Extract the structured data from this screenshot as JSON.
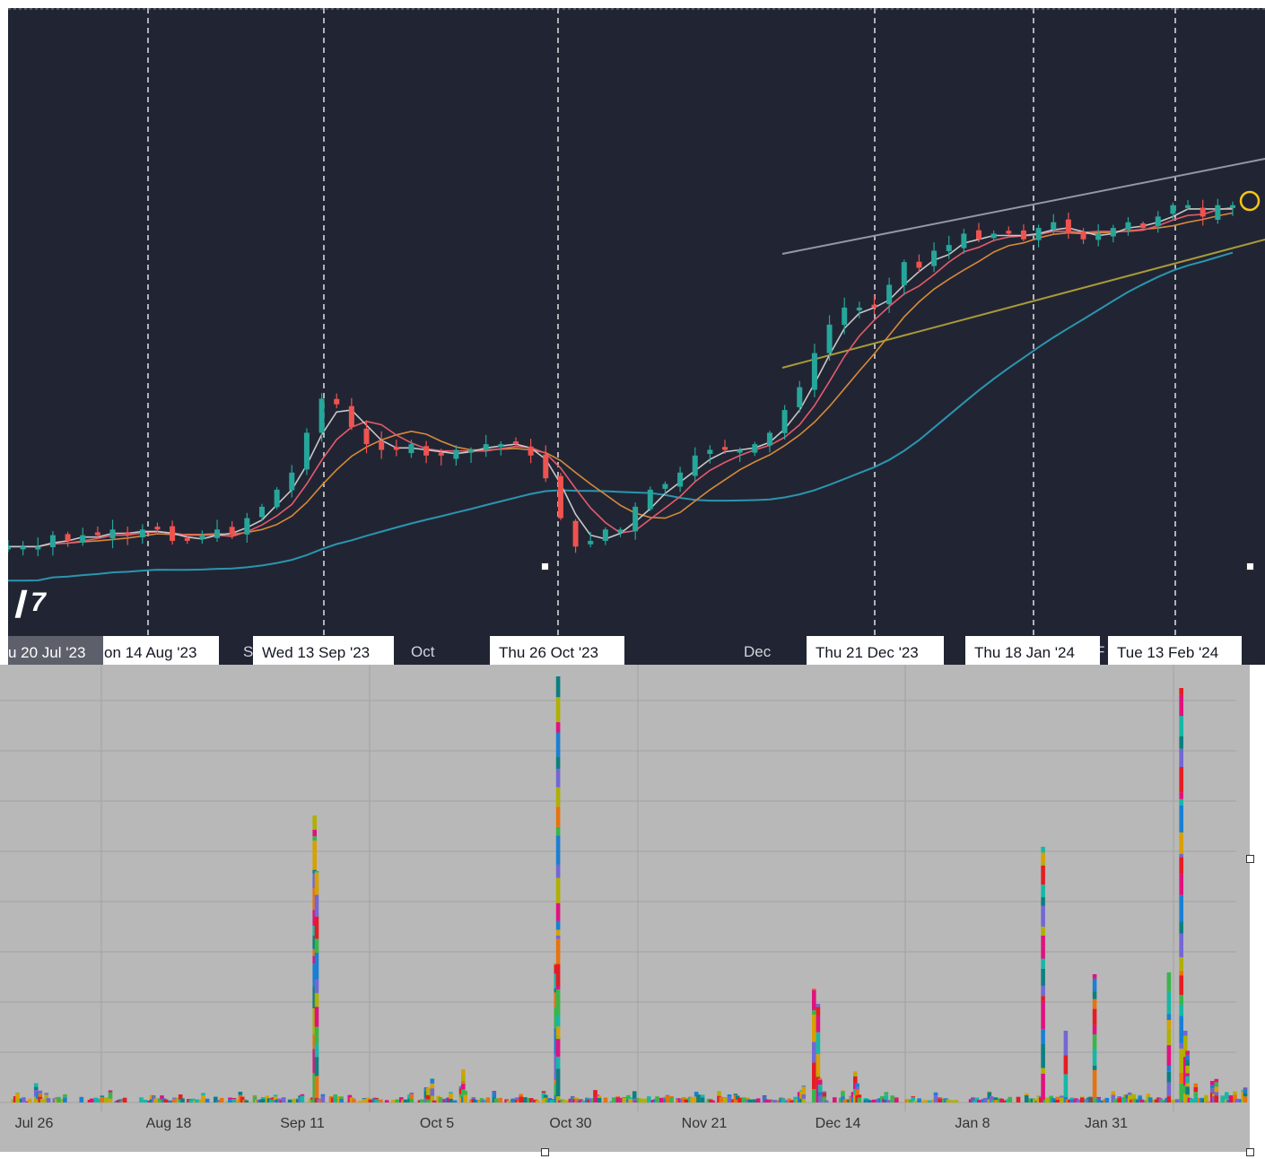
{
  "chart_data": [
    {
      "type": "candlestick",
      "x_tick_labels": [
        "Oct",
        "Dec"
      ],
      "vertical_markers": [
        "u 20 Jul '23",
        "on 14 Aug '23",
        "Wed 13 Sep '23",
        "Thu 26 Oct '23",
        "Thu 21 Dec '23",
        "Thu 18 Jan '24",
        "Tue 13 Feb '24"
      ],
      "partial_labels": [
        "S",
        "F"
      ],
      "close_path": [
        150,
        150,
        150,
        152,
        151,
        152,
        152,
        153,
        152,
        153,
        153,
        151,
        151,
        152,
        153,
        152,
        155,
        157,
        160,
        163,
        170,
        176,
        175,
        171,
        168,
        167,
        167,
        168,
        166,
        166,
        167,
        167,
        168,
        168,
        168,
        166,
        162,
        155,
        150,
        151,
        153,
        153,
        157,
        160,
        161,
        163,
        166,
        167,
        167,
        167,
        168,
        170,
        174,
        178,
        184,
        189,
        192,
        192,
        192,
        196,
        200,
        199,
        202,
        203,
        205,
        204,
        205,
        205,
        204,
        206,
        207,
        205,
        204,
        205,
        206,
        207,
        206,
        208,
        210,
        210,
        208,
        210,
        210
      ],
      "moving_averages": [
        "white",
        "red",
        "orange",
        "teal"
      ],
      "trendlines": [
        "upper channel (white)",
        "lower channel (olive)"
      ],
      "colors": {
        "background": "#212533",
        "up": "#26a69a",
        "down": "#ef5350",
        "ma_white": "#c8c8c8",
        "ma_red": "#e55b6c",
        "ma_orange": "#d8893a",
        "ma_teal": "#2b95b0",
        "channel_upper": "#9598a1",
        "channel_lower": "#a89a3a"
      }
    },
    {
      "type": "bar",
      "stacked": true,
      "x_tick_labels": [
        "Jul 26",
        "Aug 18",
        "Sep 11",
        "Oct 5",
        "Oct 30",
        "Nov 21",
        "Dec 14",
        "Jan 8",
        "Jan 31"
      ],
      "heights": [
        5,
        8,
        5,
        10,
        12,
        20,
        5,
        12,
        8,
        3,
        8,
        3,
        15,
        40,
        10,
        25,
        5,
        18,
        12,
        6,
        12,
        5,
        8,
        5,
        12,
        5,
        4,
        8,
        15,
        20,
        40,
        20,
        8,
        40,
        8,
        10,
        5,
        5,
        5,
        5,
        4,
        4,
        7,
        7,
        5,
        12,
        5,
        6,
        8,
        12,
        5,
        3,
        4,
        4,
        8,
        5,
        5,
        5,
        8,
        5,
        7,
        8,
        5,
        5,
        5,
        5,
        3,
        5,
        5,
        12,
        8,
        5,
        5,
        4,
        10,
        5,
        5,
        5,
        3,
        3,
        8,
        5,
        5,
        8,
        8,
        5,
        5,
        5,
        4,
        8,
        5,
        5,
        5,
        5,
        12,
        12,
        8,
        5,
        8,
        5,
        6,
        5,
        3,
        5,
        5,
        6,
        3,
        8,
        5,
        7,
        8,
        5,
        12,
        12,
        3,
        5,
        5,
        5,
        4,
        7,
        6,
        4,
        5,
        5,
        8,
        8,
        5,
        5,
        8,
        8,
        8,
        8,
        5,
        5,
        5,
        5,
        6,
        6,
        5,
        5,
        8,
        12,
        8,
        12,
        8,
        5,
        8,
        5,
        8,
        5,
        5,
        5,
        8,
        6,
        15,
        12,
        8,
        5,
        8,
        12,
        10,
        8,
        10,
        10,
        5,
        12,
        5,
        7,
        8,
        6,
        5,
        3,
        10,
        6,
        5,
        3,
        8,
        6,
        5,
        4,
        3,
        5,
        5,
        3,
        5,
        5,
        5,
        5,
        4,
        4
      ],
      "spikes": [
        {
          "index": 148,
          "height": 320
        },
        {
          "index": 149,
          "height": 258
        },
        {
          "index": 265,
          "height": 155
        },
        {
          "index": 266,
          "height": 475
        },
        {
          "index": 390,
          "height": 127
        },
        {
          "index": 392,
          "height": 110
        },
        {
          "index": 501,
          "height": 285
        },
        {
          "index": 512,
          "height": 80
        },
        {
          "index": 526,
          "height": 143
        },
        {
          "index": 562,
          "height": 145
        },
        {
          "index": 568,
          "height": 462
        },
        {
          "index": 570,
          "height": 80
        },
        {
          "index": 571,
          "height": 58
        }
      ],
      "grid": true,
      "colors": {
        "background": "#b8b8b8",
        "grid": "#a2a2a2",
        "segments": [
          "#1a7fd4",
          "#14b8a6",
          "#39b54a",
          "#e0127f",
          "#e51c23",
          "#e8730c",
          "#b0b000",
          "#7367d4",
          "#0c7f80",
          "#d8a000"
        ]
      }
    }
  ]
}
